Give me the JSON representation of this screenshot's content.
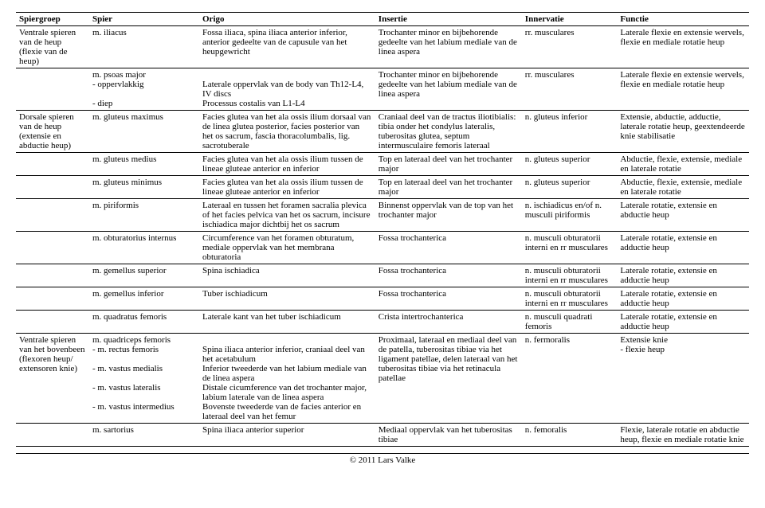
{
  "header": {
    "spiergroep": "Spiergroep",
    "spier": "Spier",
    "origo": "Origo",
    "insertie": "Insertie",
    "innervatie": "Innervatie",
    "functie": "Functie"
  },
  "rows": [
    {
      "spiergroep": "Ventrale spieren van de heup (flexie van de heup)",
      "spier": "m. iliacus",
      "origo": "Fossa iliaca, spina iliaca anterior inferior, anterior gedeelte van de capusule van het heupgewricht",
      "insertie": "Trochanter minor en bijbehorende gedeelte van het labium mediale van de linea aspera",
      "innervatie": "rr. musculares",
      "functie": "Laterale flexie en extensie wervels, flexie en mediale rotatie heup"
    },
    {
      "spiergroep": "",
      "spier": "m. psoas major\n  - oppervlakkig\n\n  - diep",
      "origo": "\nLaterale oppervlak van de body van Th12-L4, IV discs\nProcessus costalis van L1-L4",
      "insertie": "Trochanter minor en bijbehorende gedeelte van het labium mediale van de linea aspera",
      "innervatie": "rr. musculares",
      "functie": "Laterale flexie en extensie wervels, flexie en mediale rotatie heup"
    },
    {
      "spiergroep": "Dorsale spieren van de heup (extensie en abductie heup)",
      "spier": "m. gluteus maximus",
      "origo": "Facies glutea van het ala ossis ilium dorsaal van de linea glutea posterior, facies posterior van het os sacrum, fascia thoracolumbalis, lig. sacrotuberale",
      "insertie": "Craniaal deel van de tractus iliotibialis: tibia onder het condylus lateralis, tuberositas glutea, septum intermusculaire femoris lateraal",
      "innervatie": "n. gluteus inferior",
      "functie": "Extensie, abductie, adductie, laterale rotatie heup, geextendeerde knie stabilisatie"
    },
    {
      "spiergroep": "",
      "spier": "m. gluteus medius",
      "origo": "Facies glutea van het ala ossis ilium tussen de lineae gluteae anterior en inferior",
      "insertie": "Top en lateraal deel van het trochanter major",
      "innervatie": "n. gluteus superior",
      "functie": "Abductie, flexie, extensie, mediale en laterale rotatie"
    },
    {
      "spiergroep": "",
      "spier": "m. gluteus minimus",
      "origo": "Facies glutea van het ala ossis ilium tussen de lineae gluteae anterior en inferior",
      "insertie": "Top en lateraal deel van het trochanter major",
      "innervatie": "n. gluteus superior",
      "functie": "Abductie, flexie, extensie, mediale en laterale rotatie"
    },
    {
      "spiergroep": "",
      "spier": "m. piriformis",
      "origo": "Lateraal en tussen het foramen sacralia plevica of het facies pelvica van het os sacrum, incisure ischiadica major dichtbij het os sacrum",
      "insertie": "Binnenst oppervlak van de top van het trochanter major",
      "innervatie": "n. ischiadicus en/of n. musculi piriformis",
      "functie": "Laterale rotatie, extensie en abductie heup"
    },
    {
      "spiergroep": "",
      "spier": "m. obturatorius internus",
      "origo": "Circumference van het foramen obturatum, mediale oppervlak van het membrana obturatoria",
      "insertie": "Fossa trochanterica",
      "innervatie": "n. musculi obturatorii interni en rr musculares",
      "functie": "Laterale rotatie, extensie en adductie heup"
    },
    {
      "spiergroep": "",
      "spier": "m. gemellus superior",
      "origo": "Spina ischiadica",
      "insertie": "Fossa trochanterica",
      "innervatie": "n. musculi obturatorii interni en rr musculares",
      "functie": "Laterale rotatie, extensie en adductie heup"
    },
    {
      "spiergroep": "",
      "spier": "m. gemellus inferior",
      "origo": "Tuber ischiadicum",
      "insertie": "Fossa trochanterica",
      "innervatie": "n. musculi obturatorii interni en rr musculares",
      "functie": "Laterale rotatie, extensie en adductie heup"
    },
    {
      "spiergroep": "",
      "spier": "m. quadratus femoris",
      "origo": "Laterale kant van het tuber ischiadicum",
      "insertie": "Crista intertrochanterica",
      "innervatie": "n. musculi quadrati femoris",
      "functie": "Laterale rotatie, extensie en adductie heup"
    },
    {
      "spiergroep": "Ventrale spieren van het bovenbeen (flexoren heup/ extensoren knie)",
      "spier": "m. quadriceps femoris\n  - m. rectus femoris\n\n  - m. vastus medialis\n\n  - m. vastus lateralis\n\n  - m. vastus intermedius",
      "origo": "\nSpina iliaca anterior inferior, craniaal deel van het acetabulum\nInferior tweederde van het labium mediale van de linea aspera\nDistale cicumference van det trochanter major, labium laterale van de linea aspera\nBovenste tweederde van de facies anterior en lateraal deel van het femur",
      "insertie": "Proximaal, lateraal en mediaal deel van de patella, tuberositas tibiae via het ligament patellae, delen lateraal van het tuberositas tibiae via het retinacula patellae",
      "innervatie": "n. fermoralis",
      "functie": "Extensie knie\n  - flexie heup"
    },
    {
      "spiergroep": "",
      "spier": "m. sartorius",
      "origo": "Spina iliaca anterior superior",
      "insertie": "Mediaal oppervlak van het tuberositas tibiae",
      "innervatie": "n. femoralis",
      "functie": "Flexie, laterale rotatie en abductie heup, flexie en mediale rotatie knie"
    }
  ],
  "footer": "© 2011 Lars Valke"
}
